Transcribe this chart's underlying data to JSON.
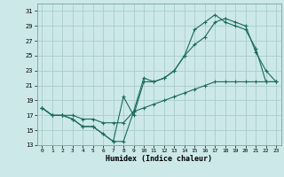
{
  "xlabel": "Humidex (Indice chaleur)",
  "bg_color": "#cce8e8",
  "grid_color": "#aacccc",
  "line_color": "#1a6b5a",
  "xlim": [
    -0.5,
    23.5
  ],
  "ylim": [
    13,
    32
  ],
  "yticks": [
    13,
    15,
    17,
    19,
    21,
    23,
    25,
    27,
    29,
    31
  ],
  "xticks": [
    0,
    1,
    2,
    3,
    4,
    5,
    6,
    7,
    8,
    9,
    10,
    11,
    12,
    13,
    14,
    15,
    16,
    17,
    18,
    19,
    20,
    21,
    22,
    23
  ],
  "series1_x": [
    0,
    1,
    2,
    3,
    4,
    5,
    6,
    7,
    8,
    9,
    10,
    11,
    12,
    13,
    14,
    15,
    16,
    17,
    18,
    19,
    20,
    21,
    22,
    23
  ],
  "series1_y": [
    18,
    17,
    17,
    16.5,
    15.5,
    15.5,
    14.5,
    13.5,
    19.5,
    17,
    21.5,
    21.5,
    22,
    23,
    25,
    26.5,
    27.5,
    29.5,
    30,
    29.5,
    29,
    25.5,
    23,
    21.5
  ],
  "series2_x": [
    0,
    1,
    2,
    3,
    4,
    5,
    6,
    7,
    8,
    9,
    10,
    11,
    12,
    13,
    14,
    15,
    16,
    17,
    18,
    19,
    20,
    21,
    22,
    23
  ],
  "series2_y": [
    18,
    17,
    17,
    16.5,
    15.5,
    15.5,
    14.5,
    13.5,
    13.5,
    17.5,
    22,
    21.5,
    22,
    23,
    25,
    28.5,
    29.5,
    30.5,
    29.5,
    29,
    28.5,
    26,
    21.5,
    21.5
  ],
  "series3_x": [
    0,
    1,
    2,
    3,
    4,
    5,
    6,
    7,
    8,
    9,
    10,
    11,
    12,
    13,
    14,
    15,
    16,
    17,
    18,
    19,
    20,
    21,
    22,
    23
  ],
  "series3_y": [
    18,
    17,
    17,
    17,
    16.5,
    16.5,
    16,
    16,
    16,
    17.5,
    18,
    18.5,
    19,
    19.5,
    20,
    20.5,
    21,
    21.5,
    21.5,
    21.5,
    21.5,
    21.5,
    21.5,
    21.5
  ]
}
